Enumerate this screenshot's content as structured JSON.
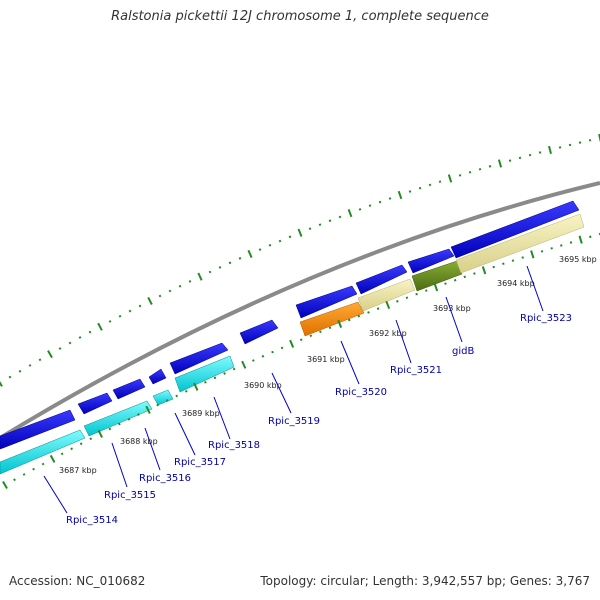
{
  "title": "Ralstonia pickettii 12J chromosome 1, complete sequence",
  "footer": {
    "accession": "Accession: NC_010682",
    "topology": "Topology: circular; Length: 3,942,557 bp; Genes: 3,767"
  },
  "colors": {
    "backbone": "#888888",
    "cds_forward": "#0000ee",
    "cds_reverse": "#00e5ee",
    "orange_feature": "#ff8c00",
    "pale_feature": "#eee8aa",
    "olive_feature": "#6b8e23",
    "tick": "#228b22",
    "label": "#0000aa"
  },
  "kbp_labels": [
    "3687 kbp",
    "3688 kbp",
    "3689 kbp",
    "3690 kbp",
    "3691 kbp",
    "3692 kbp",
    "3693 kbp",
    "3694 kbp",
    "3695 kbp"
  ],
  "gene_labels": [
    "Rpic_3514",
    "Rpic_3515",
    "Rpic_3516",
    "Rpic_3517",
    "Rpic_3518",
    "Rpic_3519",
    "Rpic_3520",
    "Rpic_3521",
    "gidB",
    "Rpic_3523"
  ]
}
